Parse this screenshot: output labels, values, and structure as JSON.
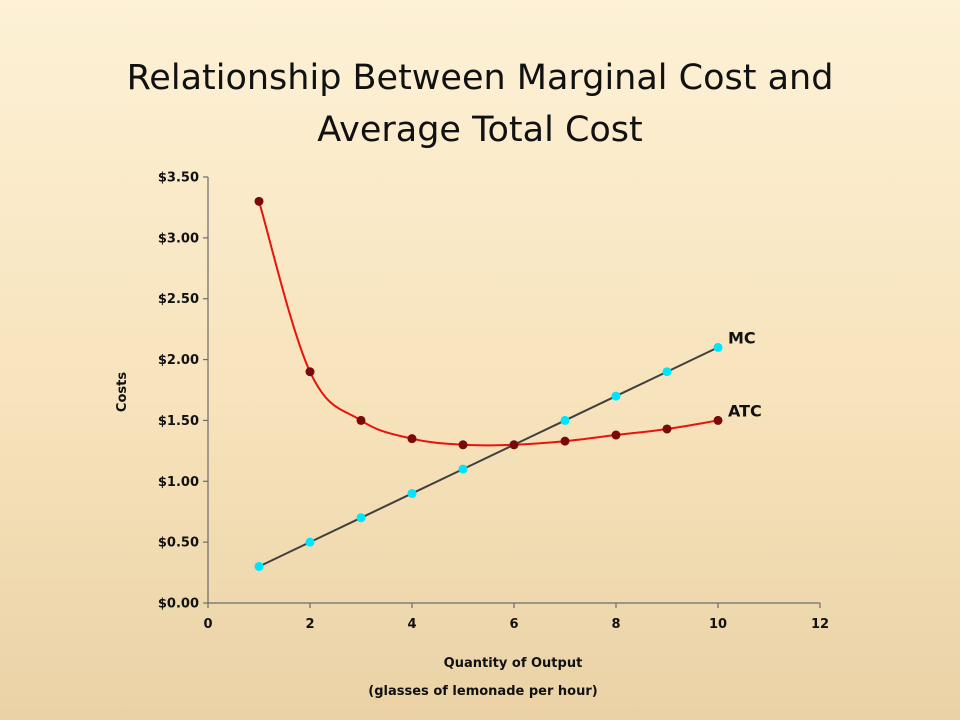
{
  "slide": {
    "title_line1": "Relationship Between Marginal Cost and",
    "title_line2": "Average Total Cost"
  },
  "chart_data": {
    "type": "line",
    "title": "Relationship Between Marginal Cost and Average Total Cost",
    "xlabel_line1": "Quantity of Output",
    "xlabel_line2": "(glasses of lemonade per hour)",
    "ylabel": "Costs",
    "xlim": [
      0,
      12
    ],
    "ylim": [
      0,
      3.5
    ],
    "x_ticks": [
      0,
      2,
      4,
      6,
      8,
      10,
      12
    ],
    "x_tick_labels": [
      "0",
      "2",
      "4",
      "6",
      "8",
      "10",
      "12"
    ],
    "y_ticks": [
      0,
      0.5,
      1.0,
      1.5,
      2.0,
      2.5,
      3.0,
      3.5
    ],
    "y_tick_labels": [
      "$0.00",
      "$0.50",
      "$1.00",
      "$1.50",
      "$2.00",
      "$2.50",
      "$3.00",
      "$3.50"
    ],
    "grid": false,
    "series": [
      {
        "name": "MC",
        "line_color": "#404040",
        "marker_color": "#00e5ff",
        "smooth": false,
        "points": [
          {
            "x": 1,
            "y": 0.3
          },
          {
            "x": 2,
            "y": 0.5
          },
          {
            "x": 3,
            "y": 0.7
          },
          {
            "x": 4,
            "y": 0.9
          },
          {
            "x": 5,
            "y": 1.1
          },
          {
            "x": 6,
            "y": 1.3
          },
          {
            "x": 7,
            "y": 1.5
          },
          {
            "x": 8,
            "y": 1.7
          },
          {
            "x": 9,
            "y": 1.9
          },
          {
            "x": 10,
            "y": 2.1
          }
        ]
      },
      {
        "name": "ATC",
        "line_color": "#e8140c",
        "marker_color": "#7a0a0a",
        "smooth": true,
        "points": [
          {
            "x": 1,
            "y": 3.3
          },
          {
            "x": 2,
            "y": 1.9
          },
          {
            "x": 3,
            "y": 1.5
          },
          {
            "x": 4,
            "y": 1.35
          },
          {
            "x": 5,
            "y": 1.3
          },
          {
            "x": 6,
            "y": 1.3
          },
          {
            "x": 7,
            "y": 1.33
          },
          {
            "x": 8,
            "y": 1.38
          },
          {
            "x": 9,
            "y": 1.43
          },
          {
            "x": 10,
            "y": 1.5
          }
        ]
      }
    ]
  }
}
